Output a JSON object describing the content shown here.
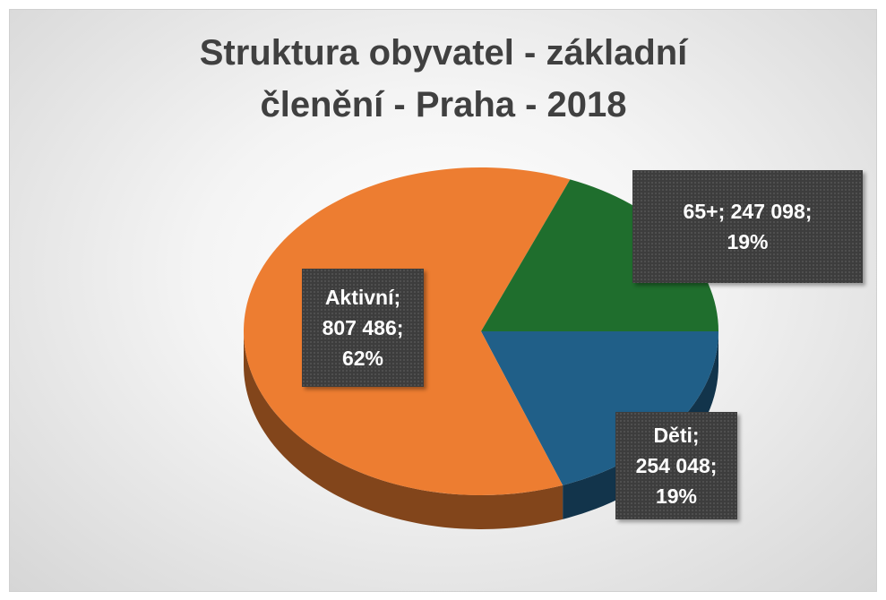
{
  "chart_data": {
    "type": "pie",
    "title": "Struktura obyvatel - základní členění - Praha - 2018",
    "categories": [
      "Děti",
      "Aktivní",
      "65+"
    ],
    "values": [
      254048,
      807486,
      247098
    ],
    "value_labels": [
      "254 048",
      "807 486",
      "247 098"
    ],
    "percent_labels": [
      "19%",
      "62%",
      "19%"
    ],
    "label_separator": ";",
    "colors": [
      "#205f88",
      "#ed7d31",
      "#1f6e2d"
    ]
  }
}
